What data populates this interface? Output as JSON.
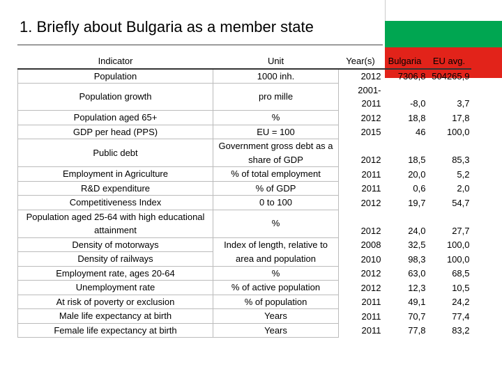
{
  "header": {
    "title": "1. Briefly about Bulgaria as a member state"
  },
  "table": {
    "columns": [
      "Indicator",
      "Unit",
      "Year(s)",
      "Bulgaria",
      "EU avg."
    ],
    "rows": [
      {
        "indicator": "Population",
        "unit": "1000 inh.",
        "years": "2012",
        "bulgaria": "7306,8",
        "eu": "504265,9"
      },
      {
        "indicator": "Population growth",
        "unit": "pro mille",
        "years": "2001-2011",
        "bulgaria": "-8,0",
        "eu": "3,7"
      },
      {
        "indicator": "Population aged 65+",
        "unit": "%",
        "years": "2012",
        "bulgaria": "18,8",
        "eu": "17,8"
      },
      {
        "indicator": "GDP per head (PPS)",
        "unit": "EU = 100",
        "years": "2015",
        "bulgaria": "46",
        "eu": "100,0"
      },
      {
        "indicator": "Public debt",
        "unit": "Government gross debt as a share of GDP",
        "years": "2012",
        "bulgaria": "18,5",
        "eu": "85,3"
      },
      {
        "indicator": "Employment in Agriculture",
        "unit": "% of total employment",
        "years": "2011",
        "bulgaria": "20,0",
        "eu": "5,2"
      },
      {
        "indicator": "R&D expenditure",
        "unit": "% of GDP",
        "years": "2011",
        "bulgaria": "0,6",
        "eu": "2,0"
      },
      {
        "indicator": "Competitiveness Index",
        "unit": "0 to 100",
        "years": "2012",
        "bulgaria": "19,7",
        "eu": "54,7"
      },
      {
        "indicator": "Population aged 25-64 with high educational attainment",
        "unit": "%",
        "years": "2012",
        "bulgaria": "24,0",
        "eu": "27,7"
      },
      {
        "indicator": "Density of motorways",
        "unit": "Index of length, relative to area and population",
        "years": "2008",
        "bulgaria": "32,5",
        "eu": "100,0"
      },
      {
        "indicator": "Density of railways",
        "years": "2010",
        "bulgaria": "98,3",
        "eu": "100,0"
      },
      {
        "indicator": "Employment rate, ages 20-64",
        "unit": "%",
        "years": "2012",
        "bulgaria": "63,0",
        "eu": "68,5"
      },
      {
        "indicator": "Unemployment rate",
        "unit": "% of active population",
        "years": "2012",
        "bulgaria": "12,3",
        "eu": "10,5"
      },
      {
        "indicator": "At risk of poverty or exclusion",
        "unit": "% of population",
        "years": "2011",
        "bulgaria": "49,1",
        "eu": "24,2"
      },
      {
        "indicator": "Male life expectancy at birth",
        "unit": "Years",
        "years": "2011",
        "bulgaria": "70,7",
        "eu": "77,4"
      },
      {
        "indicator": "Female life expectancy at birth",
        "unit": "Years",
        "years": "2011",
        "bulgaria": "77,8",
        "eu": "83,2"
      }
    ]
  }
}
